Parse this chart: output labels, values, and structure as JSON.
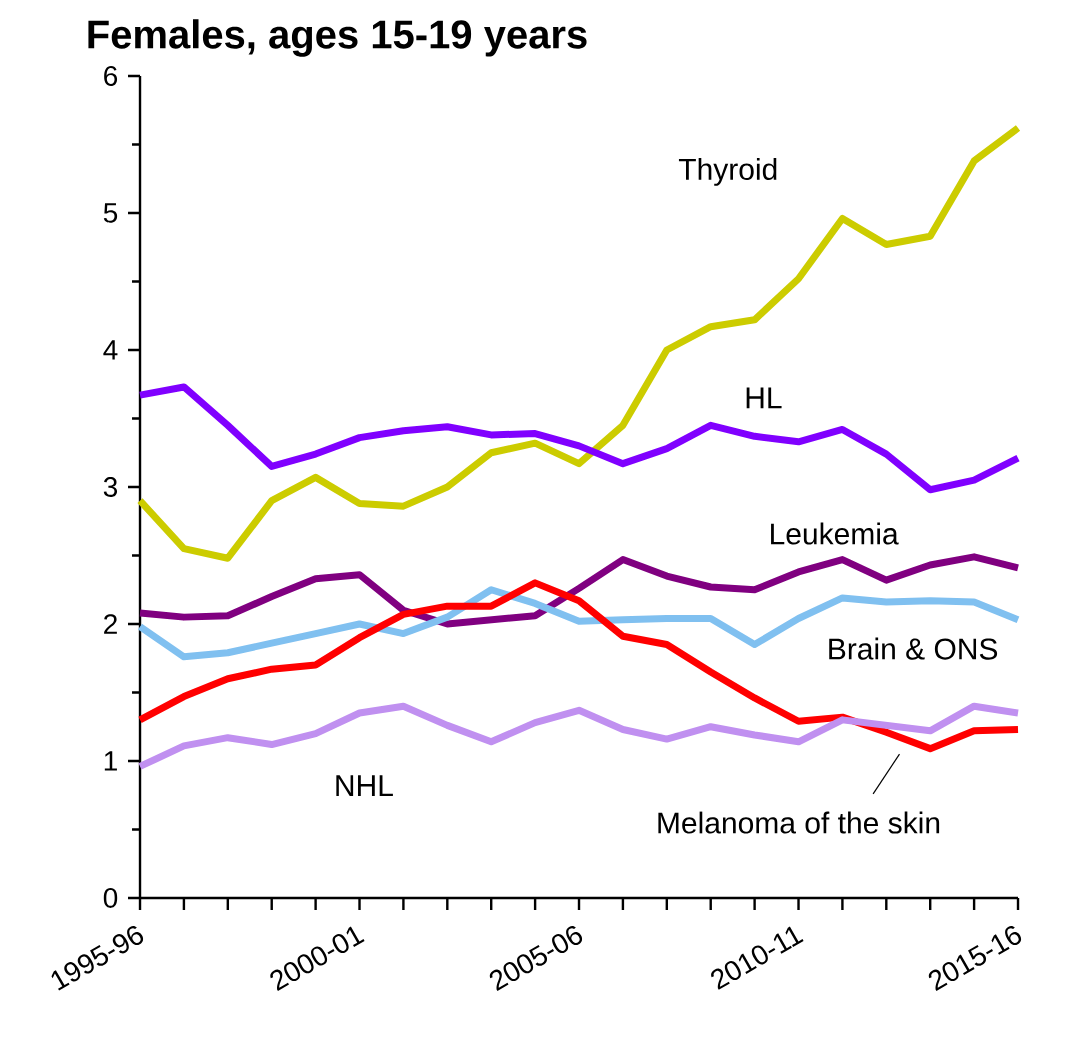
{
  "chart_data": {
    "type": "line",
    "title": "Females, ages 15-19 years",
    "categories": [
      "1995-96",
      null,
      null,
      null,
      null,
      "2000-01",
      null,
      null,
      null,
      null,
      "2005-06",
      null,
      null,
      null,
      null,
      "2010-11",
      null,
      null,
      null,
      null,
      "2015-16"
    ],
    "ylim": [
      0,
      6
    ],
    "yticks": [
      0,
      1,
      2,
      3,
      4,
      5,
      6
    ],
    "marker": "none",
    "line_style": "solid",
    "series": [
      {
        "name": "Thyroid",
        "color": "#cccc00",
        "values": [
          2.9,
          2.55,
          2.48,
          2.9,
          3.07,
          2.88,
          2.86,
          3.0,
          3.25,
          3.32,
          3.17,
          3.45,
          4.0,
          4.17,
          4.22,
          4.52,
          4.96,
          4.77,
          4.83,
          5.38,
          5.62
        ]
      },
      {
        "name": "HL",
        "color": "#8000ff",
        "values": [
          3.67,
          3.73,
          3.45,
          3.15,
          3.24,
          3.36,
          3.41,
          3.44,
          3.38,
          3.39,
          3.3,
          3.17,
          3.28,
          3.45,
          3.37,
          3.33,
          3.42,
          3.24,
          2.98,
          3.05,
          3.21
        ]
      },
      {
        "name": "Leukemia",
        "color": "#800080",
        "values": [
          2.08,
          2.05,
          2.06,
          2.2,
          2.33,
          2.36,
          2.1,
          2.0,
          2.03,
          2.06,
          2.26,
          2.47,
          2.35,
          2.27,
          2.25,
          2.38,
          2.47,
          2.32,
          2.43,
          2.49,
          2.41
        ]
      },
      {
        "name": "Brain & ONS",
        "color": "#80c0f0",
        "values": [
          1.98,
          1.76,
          1.79,
          1.86,
          1.93,
          2.0,
          1.93,
          2.05,
          2.25,
          2.15,
          2.02,
          2.03,
          2.04,
          2.04,
          1.85,
          2.04,
          2.19,
          2.16,
          2.17,
          2.16,
          2.03
        ]
      },
      {
        "name": "Melanoma of the skin",
        "color": "#ff0000",
        "values": [
          1.3,
          1.47,
          1.6,
          1.67,
          1.7,
          1.9,
          2.07,
          2.13,
          2.13,
          2.3,
          2.17,
          1.91,
          1.85,
          1.65,
          1.46,
          1.29,
          1.32,
          1.21,
          1.09,
          1.22,
          1.23
        ]
      },
      {
        "name": "NHL",
        "color": "#c090f0",
        "values": [
          0.96,
          1.11,
          1.17,
          1.12,
          1.2,
          1.35,
          1.4,
          1.26,
          1.14,
          1.28,
          1.37,
          1.23,
          1.16,
          1.25,
          1.19,
          1.14,
          1.3,
          1.26,
          1.22,
          1.4,
          1.35
        ]
      }
    ]
  }
}
